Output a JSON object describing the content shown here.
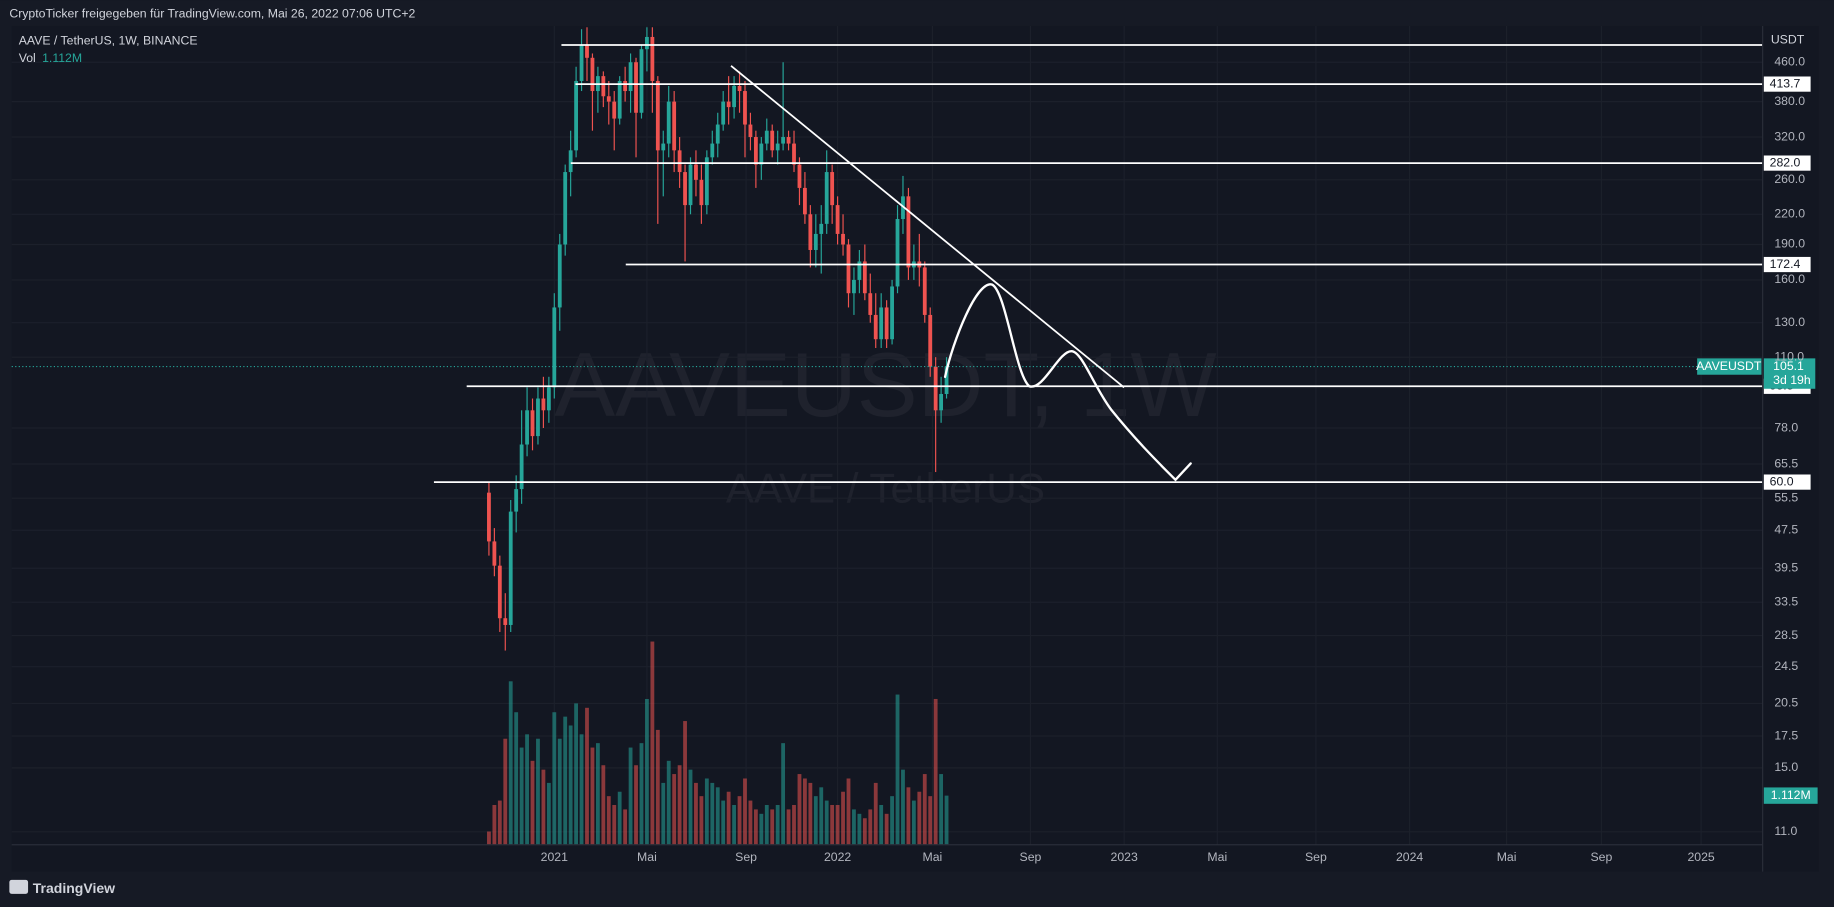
{
  "header": "CryptoTicker freigegeben für TradingView.com, Mai 26, 2022 07:06 UTC+2",
  "footer": "TradingView",
  "chart_data": {
    "type": "candlestick",
    "title": "AAVE / TetherUS, 1W, BINANCE",
    "open": [
      57,
      45,
      40,
      31,
      30,
      52,
      58,
      72,
      85,
      75,
      90,
      85,
      95,
      140,
      190,
      270,
      300,
      420,
      500,
      470,
      400,
      430,
      390,
      380,
      350,
      420,
      400,
      460,
      360,
      490,
      520,
      420,
      300,
      310,
      380,
      300,
      270,
      230,
      280,
      260,
      230,
      290,
      310,
      340,
      380,
      370,
      410,
      400,
      340,
      320,
      280,
      310,
      330,
      300,
      310,
      320,
      310,
      280,
      250,
      220,
      185,
      200,
      210,
      270,
      230,
      200,
      190,
      150,
      160,
      175,
      150,
      135,
      120,
      140,
      120,
      155,
      215,
      240,
      170,
      175,
      170,
      135,
      105,
      85,
      92
    ],
    "high": [
      60,
      48,
      42,
      35,
      55,
      62,
      85,
      95,
      90,
      95,
      100,
      100,
      150,
      200,
      280,
      330,
      450,
      540,
      545,
      480,
      450,
      440,
      420,
      400,
      430,
      450,
      480,
      470,
      500,
      545,
      545,
      430,
      330,
      410,
      400,
      320,
      280,
      290,
      300,
      280,
      300,
      330,
      360,
      400,
      430,
      430,
      440,
      420,
      360,
      330,
      320,
      350,
      340,
      330,
      460,
      330,
      330,
      290,
      270,
      230,
      220,
      230,
      300,
      280,
      240,
      220,
      195,
      170,
      185,
      190,
      165,
      150,
      150,
      145,
      160,
      230,
      265,
      250,
      190,
      200,
      175,
      140,
      110,
      100,
      110
    ],
    "low": [
      42,
      38,
      29,
      26.5,
      29,
      47,
      54,
      68,
      70,
      72,
      78,
      80,
      90,
      125,
      180,
      240,
      290,
      400,
      420,
      330,
      360,
      370,
      340,
      300,
      340,
      380,
      360,
      290,
      350,
      440,
      360,
      210,
      240,
      290,
      270,
      250,
      175,
      220,
      240,
      210,
      220,
      280,
      290,
      330,
      340,
      350,
      360,
      290,
      300,
      250,
      260,
      300,
      290,
      280,
      300,
      300,
      270,
      230,
      210,
      170,
      170,
      165,
      200,
      210,
      190,
      180,
      140,
      135,
      150,
      145,
      130,
      115,
      115,
      115,
      117,
      150,
      200,
      160,
      160,
      155,
      130,
      100,
      63,
      80,
      90
    ],
    "close": [
      45,
      40,
      31,
      30,
      52,
      58,
      72,
      85,
      75,
      90,
      85,
      95,
      140,
      190,
      270,
      300,
      420,
      500,
      470,
      400,
      430,
      390,
      380,
      350,
      420,
      400,
      460,
      360,
      490,
      520,
      420,
      300,
      310,
      380,
      300,
      270,
      230,
      280,
      260,
      230,
      290,
      310,
      340,
      380,
      370,
      410,
      400,
      340,
      320,
      280,
      310,
      330,
      300,
      310,
      320,
      310,
      280,
      250,
      220,
      185,
      200,
      210,
      270,
      230,
      200,
      190,
      150,
      160,
      175,
      150,
      135,
      120,
      140,
      120,
      155,
      215,
      240,
      170,
      175,
      170,
      135,
      105,
      85,
      92,
      105.1
    ],
    "up_color": "#26a69a",
    "down_color": "#ef5350",
    "volume": {
      "name": "Vol",
      "values": [
        0.3,
        0.9,
        1.0,
        2.4,
        3.7,
        3.0,
        2.2,
        2.5,
        1.9,
        2.4,
        1.7,
        1.4,
        3.0,
        2.4,
        2.9,
        2.7,
        3.2,
        2.5,
        3.1,
        2.2,
        2.3,
        1.8,
        1.1,
        0.9,
        1.2,
        0.8,
        2.2,
        1.8,
        2.3,
        3.3,
        4.6,
        2.6,
        1.4,
        1.9,
        1.6,
        1.8,
        2.8,
        1.7,
        1.4,
        1.1,
        1.5,
        1.4,
        1.3,
        1.0,
        1.2,
        0.9,
        1.1,
        1.5,
        1.0,
        0.8,
        0.7,
        0.9,
        0.8,
        0.9,
        2.3,
        0.8,
        0.9,
        1.6,
        1.5,
        1.4,
        1.1,
        1.3,
        1.0,
        0.9,
        0.9,
        1.2,
        1.5,
        0.8,
        0.7,
        0.6,
        0.8,
        1.4,
        0.9,
        0.7,
        1.1,
        3.4,
        1.7,
        1.3,
        1.0,
        1.2,
        1.6,
        1.1,
        3.3,
        1.6,
        1.112
      ],
      "value_label": "1.112M",
      "lim": [
        0,
        4.7
      ]
    },
    "log_scale": true,
    "y_unit": "USDT",
    "ylim": [
      10.33,
      548.4
    ],
    "yticks": [
      {
        "value": 460,
        "label": "460.0"
      },
      {
        "value": 380,
        "label": "380.0"
      },
      {
        "value": 320,
        "label": "320.0"
      },
      {
        "value": 260,
        "label": "260.0"
      },
      {
        "value": 220,
        "label": "220.0"
      },
      {
        "value": 190,
        "label": "190.0"
      },
      {
        "value": 160,
        "label": "160.0"
      },
      {
        "value": 130,
        "label": "130.0"
      },
      {
        "value": 110,
        "label": "110.0"
      },
      {
        "value": 78,
        "label": "78.0"
      },
      {
        "value": 65.5,
        "label": "65.5"
      },
      {
        "value": 55.5,
        "label": "55.5"
      },
      {
        "value": 47.5,
        "label": "47.5"
      },
      {
        "value": 39.5,
        "label": "39.5"
      },
      {
        "value": 33.5,
        "label": "33.5"
      },
      {
        "value": 28.5,
        "label": "28.5"
      },
      {
        "value": 24.5,
        "label": "24.5"
      },
      {
        "value": 20.5,
        "label": "20.5"
      },
      {
        "value": 17.5,
        "label": "17.5"
      },
      {
        "value": 15,
        "label": "15.0"
      },
      {
        "value": 11,
        "label": "11.0"
      }
    ],
    "xlim": [
      -87.6,
      233.8
    ],
    "xticks": [
      {
        "value": 12,
        "label": "2021"
      },
      {
        "value": 29,
        "label": "Mai"
      },
      {
        "value": 47.2,
        "label": "Sep"
      },
      {
        "value": 64,
        "label": "2022"
      },
      {
        "value": 81.4,
        "label": "Mai"
      },
      {
        "value": 99.4,
        "label": "Sep"
      },
      {
        "value": 116.6,
        "label": "2023"
      },
      {
        "value": 133.7,
        "label": "Mai"
      },
      {
        "value": 151.8,
        "label": "Sep"
      },
      {
        "value": 169,
        "label": "2024"
      },
      {
        "value": 186.8,
        "label": "Mai"
      },
      {
        "value": 204.2,
        "label": "Sep"
      },
      {
        "value": 222.5,
        "label": "2025"
      }
    ],
    "grid": true,
    "levels": [
      500,
      413.7,
      {
        "value": 282,
        "label": "282.0"
      },
      172.4,
      95.5,
      {
        "value": 60,
        "label": "60.0"
      }
    ],
    "last_price": {
      "symbol": "AAVEUSDT",
      "value": 105.1,
      "countdown": "3d 19h"
    },
    "watermark": {
      "symbol": "AAVEUSDT, 1W",
      "description": "AAVE / TetherUS"
    }
  }
}
